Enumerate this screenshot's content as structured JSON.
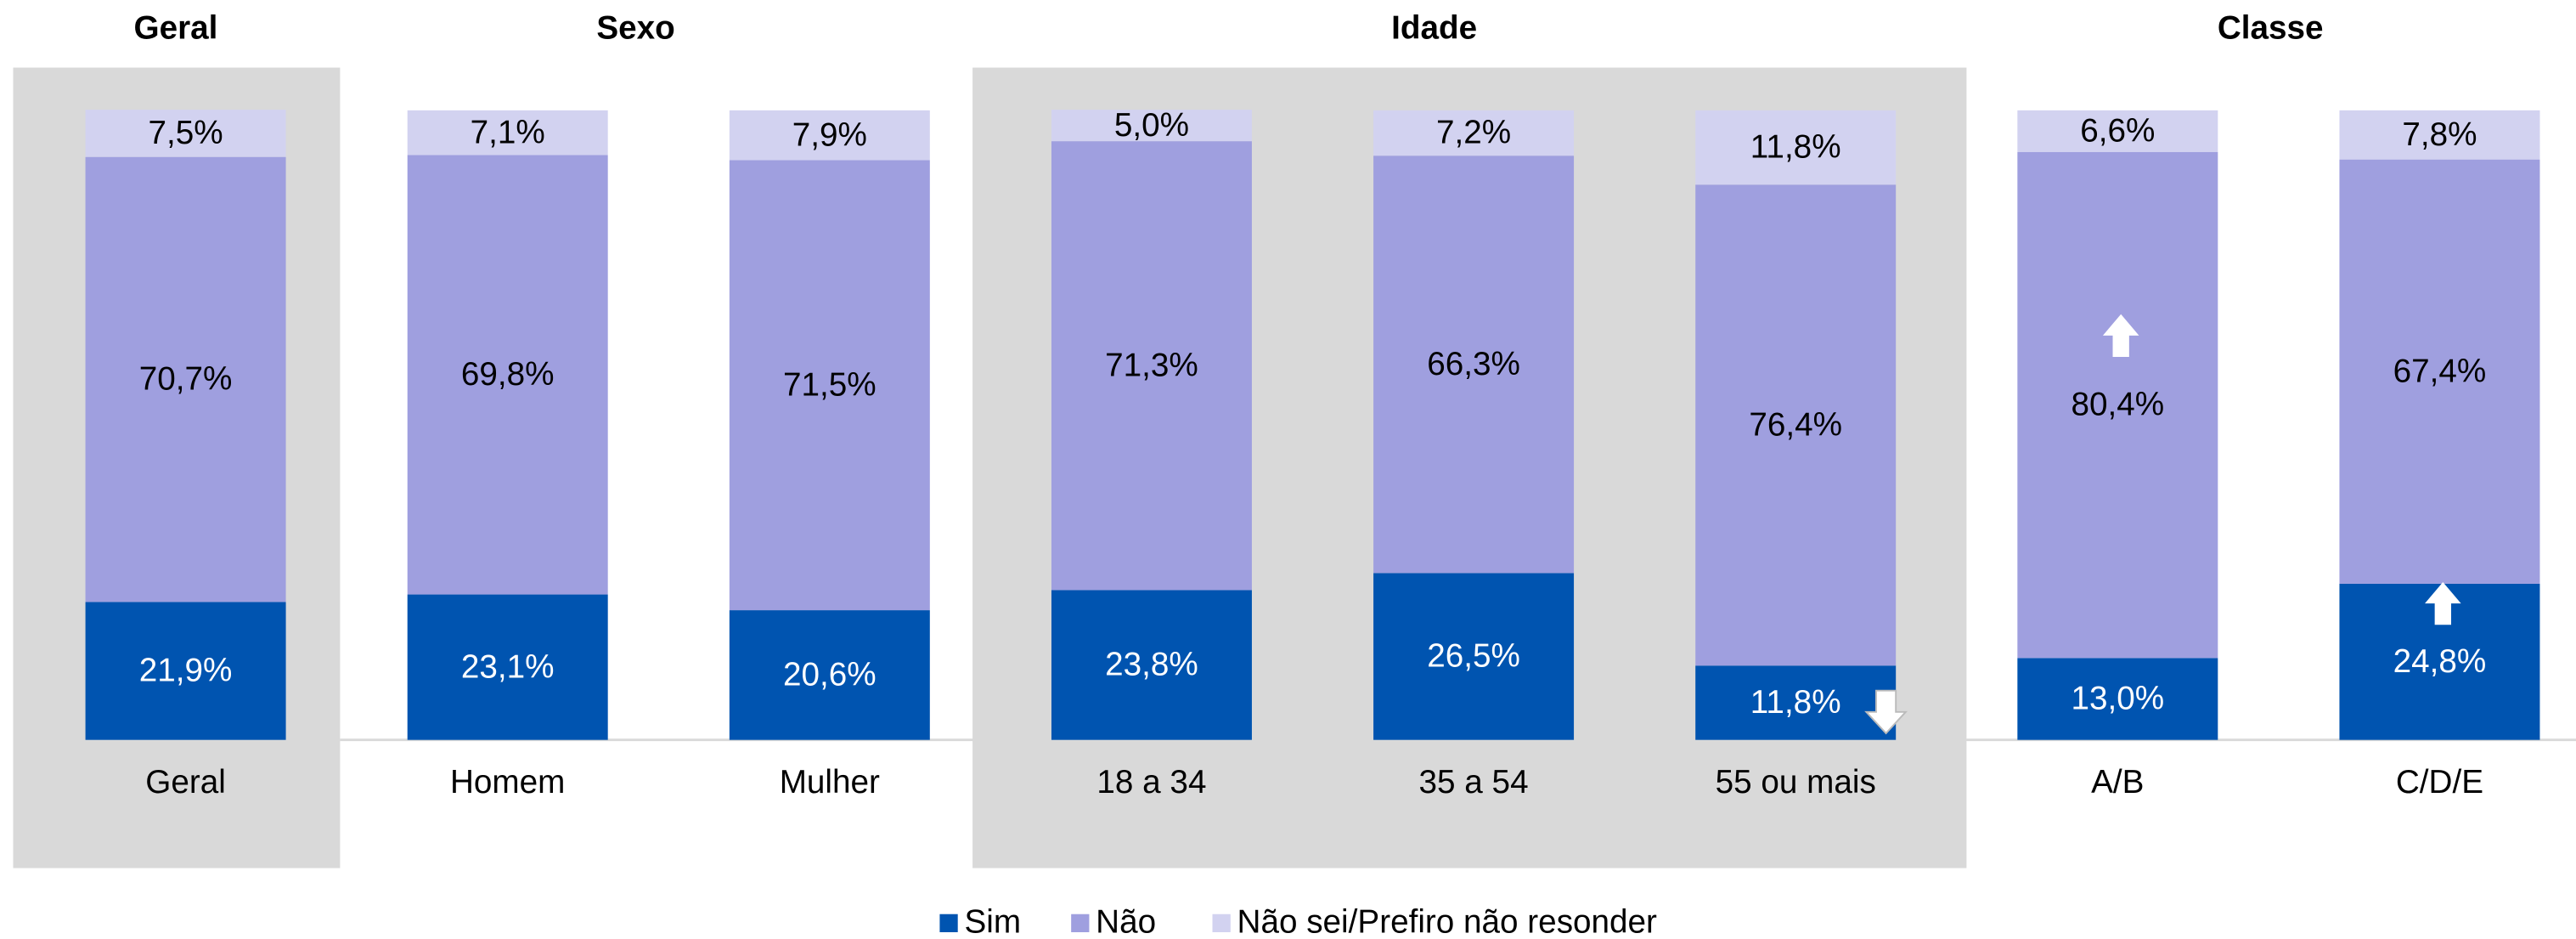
{
  "chart_data": {
    "type": "stacked_bar",
    "groups": [
      "Geral",
      "Sexo",
      "Idade",
      "Classe"
    ],
    "categories": [
      "Geral",
      "Homem",
      "Mulher",
      "18 a 34",
      "35 a 54",
      "55 ou mais",
      "A/B",
      "C/D/E"
    ],
    "series": [
      {
        "name": "Sim",
        "color": "#0054b0",
        "values": [
          21.9,
          23.1,
          20.6,
          23.8,
          26.5,
          11.8,
          13.0,
          24.8
        ],
        "value_labels": [
          "21,9%",
          "23,1%",
          "20,6%",
          "23,8%",
          "26,5%",
          "11,8%",
          "13,0%",
          "24,8%"
        ]
      },
      {
        "name": "Não",
        "color": "#9f9fdf",
        "values": [
          70.7,
          69.8,
          71.5,
          71.3,
          66.3,
          76.4,
          80.4,
          67.4
        ],
        "value_labels": [
          "70,7%",
          "69,8%",
          "71,5%",
          "71,3%",
          "66,3%",
          "76,4%",
          "80,4%",
          "67,4%"
        ]
      },
      {
        "name": "Não sei/Prefiro não resonder",
        "color": "#d2d2f0",
        "values": [
          7.5,
          7.1,
          7.9,
          5.0,
          7.2,
          11.8,
          6.6,
          7.8
        ],
        "value_labels": [
          "7,5%",
          "7,1%",
          "7,9%",
          "5,0%",
          "7,2%",
          "11,8%",
          "6,6%",
          "7,8%"
        ]
      }
    ],
    "ylim": [
      0,
      100
    ]
  }
}
